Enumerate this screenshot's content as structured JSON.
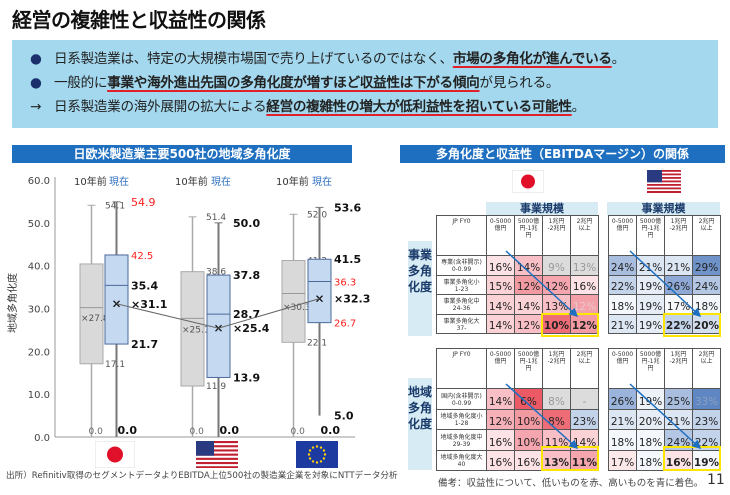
{
  "title": "経営の複雑性と収益性の関係",
  "summary": {
    "lines": [
      {
        "marker": "●",
        "pre": "日系製造業は、特定の大規模市場国で売り上げているのではなく、",
        "em": "市場の多角化が進んでいる",
        "post": "。"
      },
      {
        "marker": "●",
        "pre": "一般的に",
        "em": "事業や海外進出先国の多角化度が増すほど収益性は下がる傾向",
        "post": "が見られる。"
      },
      {
        "marker": "→",
        "pre": "日系製造業の海外展開の拡大による",
        "em": "経営の複雑性の増大が低利益性を招いている可能性",
        "post": "。"
      }
    ]
  },
  "left_panel": {
    "header": "日欧米製造業主要500社の地域多角化度"
  },
  "right_panel": {
    "header": "多角化度と収益性（EBITDAマージン）の関係",
    "scale_label": "事業規模",
    "business_axis": "事業多角化度",
    "region_axis": "地域多角化度"
  },
  "chart_data": {
    "type": "boxplot",
    "ylabel": "地域多角化度",
    "ylim": [
      0,
      60
    ],
    "yticks": [
      "0.0",
      "10.0",
      "20.0",
      "30.0",
      "40.0",
      "50.0",
      "60.0"
    ],
    "series_labels": {
      "before": "10年前",
      "now": "現在"
    },
    "colors": {
      "before": "#d9d9d9",
      "now": "#c5d9f1",
      "highlight": "#ff2020"
    },
    "groups": [
      {
        "name": "Japan",
        "flag": "jp-flag",
        "before": {
          "max": 54.1,
          "q3": 40.4,
          "median": 30.2,
          "q1": 17.1,
          "min": 0.0,
          "mean": 27.8
        },
        "now": {
          "max": 54.9,
          "q3": 42.5,
          "median": 35.4,
          "q1": 21.7,
          "min": 0.0,
          "mean": 31.1,
          "red": [
            "max",
            "q3"
          ]
        }
      },
      {
        "name": "USA",
        "flag": "us-flag",
        "before": {
          "max": 51.4,
          "q3": 38.6,
          "median": 27.7,
          "q1": 11.9,
          "min": 0.0,
          "mean": 25.1
        },
        "now": {
          "max": 50.0,
          "q3": 37.8,
          "median": 28.7,
          "q1": 13.9,
          "min": 0.0,
          "mean": 25.4,
          "red": []
        }
      },
      {
        "name": "EU",
        "flag": "eu-flag",
        "before": {
          "max": 52.0,
          "q3": 41.2,
          "median": 33.5,
          "q1": 22.1,
          "min": 0.0,
          "mean": 30.3
        },
        "now": {
          "max": 53.6,
          "q3": 41.5,
          "median": 36.3,
          "q1": 26.7,
          "lower_whisker": 5.0,
          "min": 0.0,
          "mean": 32.3,
          "red": [
            "median",
            "q1"
          ]
        }
      }
    ]
  },
  "heatmaps": {
    "corner": "JP FY0",
    "columns": [
      "0-5000\n億円",
      "5000億\n円-1兆\n円",
      "1兆円\n-2兆円",
      "2兆円\n以上"
    ],
    "business_rows": [
      "専業(含非開示)\n0-0.99",
      "事業多角化小\n1-23",
      "事業多角化中\n24-36",
      "事業多角化大\n37-"
    ],
    "region_rows": [
      "国内(含非開示)\n0-0.99",
      "地域多角化度小\n1-28",
      "地域多角化度中\n29-39",
      "地域多角化度大\n40"
    ],
    "tables": [
      {
        "id": "jp-business",
        "country": "Japan",
        "cells": [
          [
            [
              "16%",
              "#fde3e6"
            ],
            [
              "14%",
              "#f8c0c6"
            ],
            [
              "9%",
              "#dcdcdc",
              "#999"
            ],
            [
              "13%",
              "#dcdcdc",
              "#999"
            ]
          ],
          [
            [
              "15%",
              "#fbd3d7"
            ],
            [
              "12%",
              "#f29aa2"
            ],
            [
              "12%",
              "#f4a5ad"
            ],
            [
              "16%",
              "#fde3e6"
            ]
          ],
          [
            [
              "14%",
              "#fbd3d7"
            ],
            [
              "14%",
              "#fbd3d7"
            ],
            [
              "13%",
              "#f8c0c6"
            ],
            [
              "12%",
              "#f4a0a8",
              "#e8c8cc"
            ]
          ],
          [
            [
              "14%",
              "#fbd3d7"
            ],
            [
              "12%",
              "#f8c0c6"
            ],
            [
              "10%",
              "#ee6c76"
            ],
            [
              "12%",
              "#f49aa3"
            ]
          ]
        ]
      },
      {
        "id": "us-business",
        "country": "USA",
        "cells": [
          [
            [
              "24%",
              "#a9bedf"
            ],
            [
              "21%",
              "#dde6f3"
            ],
            [
              "21%",
              "#dde6f3"
            ],
            [
              "29%",
              "#6f93c9"
            ]
          ],
          [
            [
              "22%",
              "#c3d3ea"
            ],
            [
              "19%",
              "#e6edf7"
            ],
            [
              "26%",
              "#8fa9d6"
            ],
            [
              "24%",
              "#b3c6e4"
            ]
          ],
          [
            [
              "18%",
              "#f4f7fb"
            ],
            [
              "19%",
              "#e6edf7"
            ],
            [
              "17%",
              "#f7f9fc"
            ],
            [
              "18%",
              "#f4f7fb"
            ]
          ],
          [
            [
              "21%",
              "#dde6f3"
            ],
            [
              "19%",
              "#e6edf7"
            ],
            [
              "22%",
              "#c3d3ea"
            ],
            [
              "20%",
              "#d3deef"
            ]
          ]
        ]
      },
      {
        "id": "jp-region",
        "country": "Japan",
        "cells": [
          [
            [
              "14%",
              "#f8c0c6"
            ],
            [
              "6%",
              "#ec5a66"
            ],
            [
              "8%",
              "#dcdcdc",
              "#999"
            ],
            [
              "-",
              "#dcdcdc",
              "#999"
            ]
          ],
          [
            [
              "12%",
              "#f6b1b8"
            ],
            [
              "10%",
              "#f29aa2"
            ],
            [
              "8%",
              "#ee6c76"
            ],
            [
              "23%",
              "#c3d3ea"
            ]
          ],
          [
            [
              "16%",
              "#fde3e6"
            ],
            [
              "10%",
              "#f4a5ad"
            ],
            [
              "11%",
              "#f8c0c6"
            ],
            [
              "14%",
              "#fbd3d7"
            ]
          ],
          [
            [
              "16%",
              "#fde3e6"
            ],
            [
              "16%",
              "#fde3e6"
            ],
            [
              "13%",
              "#f8c0c6"
            ],
            [
              "11%",
              "#f4a5ad"
            ]
          ]
        ]
      },
      {
        "id": "us-region",
        "country": "USA",
        "cells": [
          [
            [
              "26%",
              "#9bb4dc"
            ],
            [
              "19%",
              "#edf2f9"
            ],
            [
              "25%",
              "#a9bedf"
            ],
            [
              "33%",
              "#5e86c2",
              "#8aa0c0"
            ]
          ],
          [
            [
              "21%",
              "#dde6f3"
            ],
            [
              "20%",
              "#e6edf7"
            ],
            [
              "21%",
              "#dde6f3"
            ],
            [
              "23%",
              "#c3d3ea"
            ]
          ],
          [
            [
              "18%",
              "#f4f7fb"
            ],
            [
              "18%",
              "#f4f7fb"
            ],
            [
              "24%",
              "#b3c6e4"
            ],
            [
              "22%",
              "#c3d3ea"
            ]
          ],
          [
            [
              "17%",
              "#fde8ea"
            ],
            [
              "18%",
              "#f4f7fb"
            ],
            [
              "16%",
              "#fde3e6"
            ],
            [
              "19%",
              "#f4f7fb"
            ]
          ]
        ]
      }
    ]
  },
  "footer": {
    "source": "出所）Refinitiv取得のセグメントデータよりEBITDA上位500社の製造業企業を対象にNTTデータ分析",
    "remark": "備考：収益性について、低いものを赤、高いものを青に着色。",
    "page": "11"
  }
}
